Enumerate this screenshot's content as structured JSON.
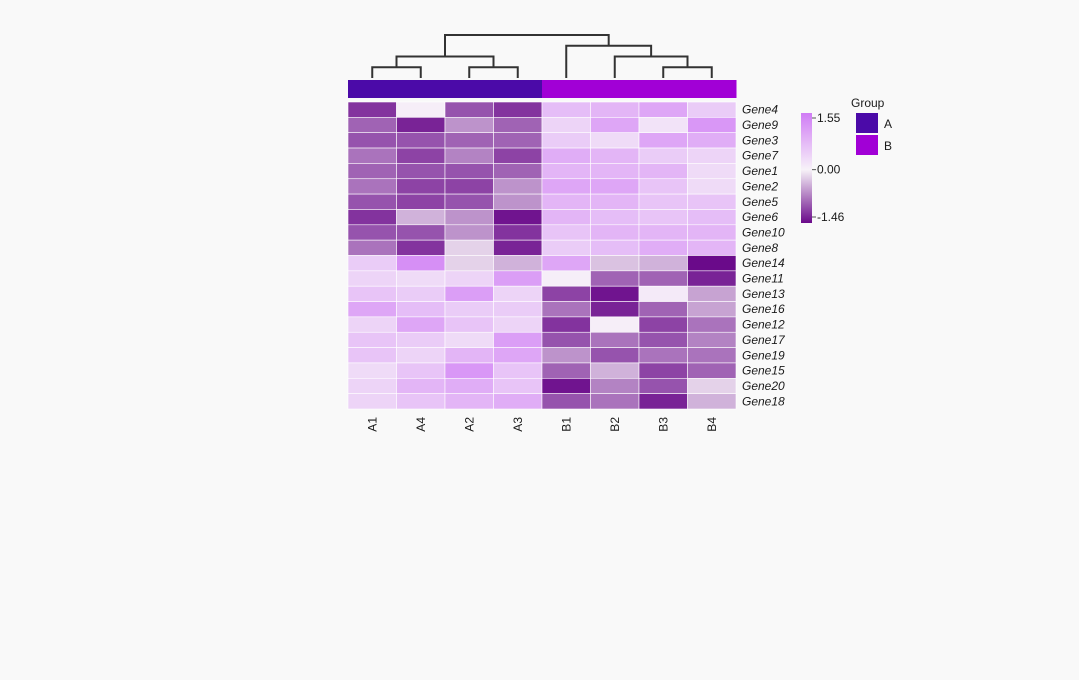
{
  "chart_data": {
    "type": "heatmap",
    "columns": [
      "A1",
      "A4",
      "A2",
      "A3",
      "B1",
      "B2",
      "B3",
      "B4"
    ],
    "rows": [
      "Gene4",
      "Gene9",
      "Gene3",
      "Gene7",
      "Gene1",
      "Gene2",
      "Gene5",
      "Gene6",
      "Gene10",
      "Gene8",
      "Gene14",
      "Gene11",
      "Gene13",
      "Gene16",
      "Gene12",
      "Gene17",
      "Gene19",
      "Gene15",
      "Gene20",
      "Gene18"
    ],
    "values": [
      [
        -1.2,
        0.05,
        -1.0,
        -1.2,
        0.7,
        0.8,
        1.0,
        0.5
      ],
      [
        -0.9,
        -1.3,
        -0.6,
        -0.9,
        0.4,
        1.0,
        0.2,
        1.2
      ],
      [
        -1.0,
        -1.0,
        -0.9,
        -0.9,
        0.5,
        0.3,
        1.0,
        0.9
      ],
      [
        -0.8,
        -1.1,
        -0.7,
        -1.1,
        0.9,
        0.8,
        0.5,
        0.4
      ],
      [
        -0.9,
        -1.0,
        -1.0,
        -0.9,
        0.8,
        0.8,
        0.8,
        0.3
      ],
      [
        -0.8,
        -1.1,
        -1.1,
        -0.6,
        1.0,
        1.0,
        0.6,
        0.3
      ],
      [
        -1.0,
        -1.1,
        -1.0,
        -0.6,
        0.8,
        0.8,
        0.6,
        0.6
      ],
      [
        -1.2,
        -0.4,
        -0.6,
        -1.4,
        0.8,
        0.7,
        0.6,
        0.7
      ],
      [
        -1.0,
        -1.0,
        -0.6,
        -1.2,
        0.6,
        0.8,
        0.8,
        0.8
      ],
      [
        -0.8,
        -1.2,
        -0.2,
        -1.3,
        0.5,
        0.7,
        0.9,
        0.8
      ],
      [
        0.5,
        1.3,
        -0.2,
        -0.4,
        1.0,
        -0.3,
        -0.4,
        -1.46
      ],
      [
        0.4,
        0.3,
        0.4,
        1.1,
        0.05,
        -0.9,
        -0.9,
        -1.3
      ],
      [
        0.6,
        0.5,
        1.1,
        0.4,
        -1.1,
        -1.4,
        0.1,
        -0.5
      ],
      [
        1.0,
        0.7,
        0.5,
        0.5,
        -0.8,
        -1.3,
        -0.9,
        -0.5
      ],
      [
        0.4,
        1.0,
        0.6,
        0.4,
        -1.2,
        0.05,
        -1.1,
        -0.8
      ],
      [
        0.6,
        0.5,
        0.3,
        1.1,
        -1.0,
        -0.8,
        -1.0,
        -0.7
      ],
      [
        0.6,
        0.4,
        0.8,
        1.0,
        -0.6,
        -1.0,
        -0.8,
        -0.8
      ],
      [
        0.3,
        0.6,
        1.2,
        0.6,
        -0.9,
        -0.4,
        -1.1,
        -0.9
      ],
      [
        0.4,
        0.8,
        0.9,
        0.6,
        -1.4,
        -0.7,
        -1.0,
        -0.2
      ],
      [
        0.4,
        0.6,
        0.8,
        0.9,
        -1.0,
        -0.8,
        -1.3,
        -0.4
      ]
    ],
    "column_groups": [
      "A",
      "A",
      "A",
      "A",
      "B",
      "B",
      "B",
      "B"
    ],
    "color_scale": {
      "min": -1.46,
      "mid": 0.0,
      "max": 1.55,
      "low_color": "#6a0a8a",
      "mid_color": "#f7f2f8",
      "high_color": "#d07cf5"
    },
    "legend": {
      "ticks": [
        "1.55",
        "0.00",
        "-1.46"
      ],
      "tick_values": [
        1.55,
        0.0,
        -1.46
      ],
      "group_title": "Group",
      "group_items": [
        {
          "label": "A",
          "color": "#4b0aa8"
        },
        {
          "label": "B",
          "color": "#a100d6"
        }
      ]
    },
    "row_dendrogram_merges": [
      [
        3,
        4
      ],
      [
        5,
        6
      ],
      [
        10,
        11
      ],
      [
        8,
        9
      ],
      [
        -3,
        -2
      ],
      [
        7,
        -4
      ],
      [
        1,
        2
      ],
      [
        -5,
        -6
      ],
      [
        -7,
        -8
      ],
      [
        -9,
        0
      ],
      [
        -10,
        -1
      ],
      [
        -11,
        12
      ],
      [
        -12,
        13
      ],
      [
        -13,
        14
      ],
      [
        -14,
        15
      ],
      [
        -15,
        16
      ],
      [
        18,
        19
      ],
      [
        17,
        -16
      ],
      [
        -18,
        -17
      ],
      [
        -20,
        -19
      ]
    ],
    "col_dendrogram_merges": [
      [
        0,
        1
      ],
      [
        2,
        3
      ],
      [
        6,
        7
      ],
      [
        5,
        -3
      ],
      [
        -1,
        -2
      ],
      [
        4,
        -4
      ],
      [
        -5,
        -6
      ]
    ]
  }
}
